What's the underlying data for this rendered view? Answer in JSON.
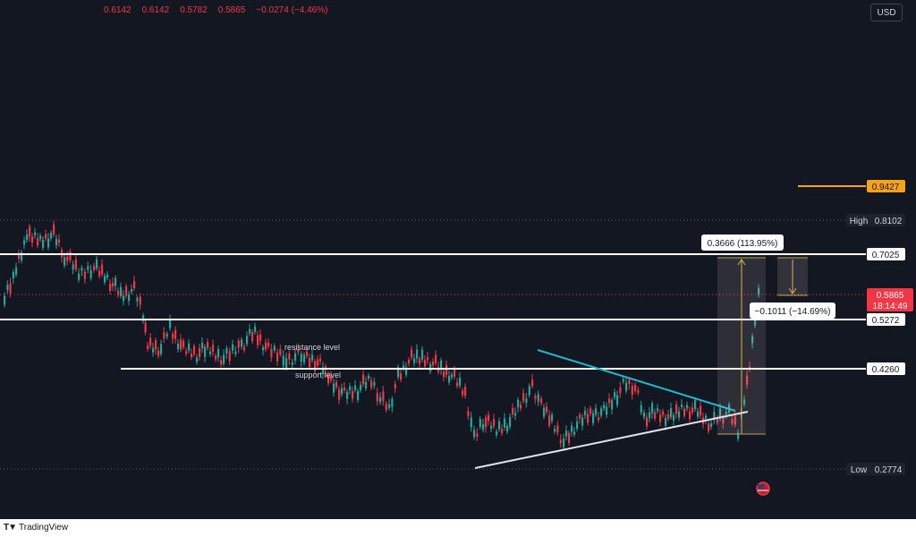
{
  "ohlc": {
    "open": "0.6142",
    "high": "0.6142",
    "low": "0.5782",
    "close": "0.5865",
    "change": "−0.0274 (−4.46%)"
  },
  "currency_button": "USD",
  "price_labels": {
    "target": "0.9427",
    "high_label": "High",
    "high": "0.8102",
    "resistance_top": "0.7025",
    "current": "0.5865",
    "countdown": "18:14:49",
    "level_mid": "0.5272",
    "level_low": "0.4260",
    "low_label": "Low",
    "low": "0.2774"
  },
  "annotations": {
    "measure_up": "0.3666 (113.95%)",
    "measure_down": "−0.1011 (−14.69%)",
    "resistance_text": "resistance level",
    "support_text": "support level"
  },
  "brand": "TradingView",
  "colors": {
    "background": "#131722",
    "up": "#26a69a",
    "down": "#f23645",
    "target_line": "#f7a21b",
    "trendline_top": "#1fb8cd",
    "level_lines": "#ffffff"
  },
  "chart_data": {
    "type": "candlestick",
    "title": "",
    "price_levels": [
      0.9427,
      0.8102,
      0.7025,
      0.5865,
      0.5272,
      0.426,
      0.2774
    ],
    "ohlc_last": {
      "open": 0.6142,
      "high": 0.6142,
      "low": 0.5782,
      "close": 0.5865
    },
    "range": {
      "high": 0.8102,
      "low": 0.2774
    },
    "measurements": [
      {
        "change": 0.3666,
        "percent": 113.95
      },
      {
        "change": -0.1011,
        "percent": -14.69
      }
    ]
  }
}
